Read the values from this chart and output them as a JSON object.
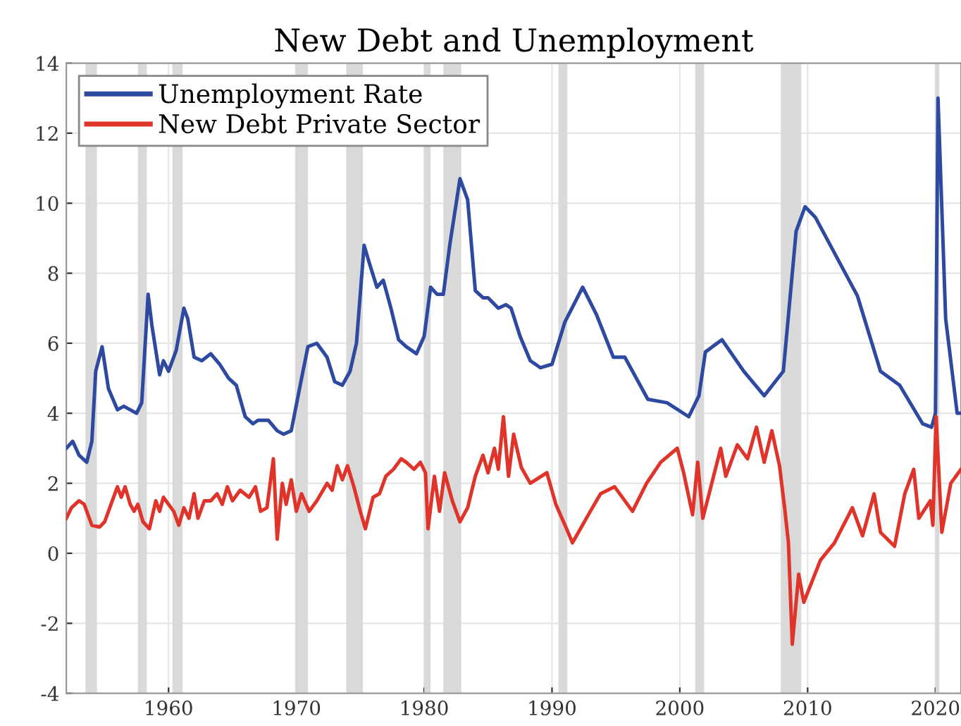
{
  "chart_data": {
    "type": "line",
    "title": "New Debt and Unemployment",
    "xlim": [
      1952,
      2022
    ],
    "xticks": [
      1960,
      1970,
      1980,
      1990,
      2000,
      2010,
      2020
    ],
    "ylim": [
      -4,
      14
    ],
    "yticks": [
      -4,
      -2,
      0,
      2,
      4,
      6,
      8,
      10,
      12,
      14
    ],
    "grid": true,
    "legend": "top left",
    "line_style": "solid",
    "bands": [
      {
        "axis": "x",
        "from": 1953.5,
        "to": 1954.4,
        "label": null,
        "color": "#d9d9d9"
      },
      {
        "axis": "x",
        "from": 1957.6,
        "to": 1958.3,
        "label": null,
        "color": "#d9d9d9"
      },
      {
        "axis": "x",
        "from": 1960.3,
        "to": 1961.1,
        "label": null,
        "color": "#d9d9d9"
      },
      {
        "axis": "x",
        "from": 1969.9,
        "to": 1970.9,
        "label": null,
        "color": "#d9d9d9"
      },
      {
        "axis": "x",
        "from": 1973.9,
        "to": 1975.2,
        "label": null,
        "color": "#d9d9d9"
      },
      {
        "axis": "x",
        "from": 1980.0,
        "to": 1980.5,
        "label": null,
        "color": "#d9d9d9"
      },
      {
        "axis": "x",
        "from": 1981.5,
        "to": 1982.9,
        "label": null,
        "color": "#d9d9d9"
      },
      {
        "axis": "x",
        "from": 1990.5,
        "to": 1991.2,
        "label": null,
        "color": "#d9d9d9"
      },
      {
        "axis": "x",
        "from": 2001.2,
        "to": 2001.9,
        "label": null,
        "color": "#d9d9d9"
      },
      {
        "axis": "x",
        "from": 2007.9,
        "to": 2009.5,
        "label": null,
        "color": "#d9d9d9"
      },
      {
        "axis": "x",
        "from": 2020.0,
        "to": 2020.3,
        "label": null,
        "color": "#d9d9d9"
      }
    ],
    "series": [
      {
        "name": "Unemployment Rate",
        "color": "#2e4aa0",
        "x": [
          1952,
          1952.5,
          1953,
          1953.6,
          1954,
          1954.3,
          1954.8,
          1955.3,
          1956,
          1956.5,
          1957,
          1957.5,
          1957.9,
          1958.4,
          1958.7,
          1959.3,
          1959.6,
          1960,
          1960.6,
          1961.2,
          1961.5,
          1962,
          1962.6,
          1963.3,
          1964,
          1964.7,
          1965.3,
          1966,
          1966.6,
          1967,
          1967.8,
          1968.5,
          1969,
          1969.6,
          1970.3,
          1970.9,
          1971.6,
          1972.4,
          1973,
          1973.6,
          1974.2,
          1974.7,
          1975.3,
          1975.7,
          1976.3,
          1976.8,
          1977.4,
          1978,
          1978.6,
          1979.4,
          1980,
          1980.5,
          1981,
          1981.5,
          1982,
          1982.8,
          1983.4,
          1984,
          1984.6,
          1985,
          1985.8,
          1986.4,
          1986.8,
          1987.5,
          1988.3,
          1989.1,
          1990,
          1991,
          1992.4,
          1993.5,
          1994.8,
          1995.7,
          1997.5,
          1999,
          2000.7,
          2001.5,
          2002,
          2003.3,
          2005,
          2006.6,
          2008.1,
          2009.1,
          2009.8,
          2010.6,
          2011.7,
          2013.9,
          2015.7,
          2017.2,
          2019,
          2019.7,
          2020.0,
          2020.2,
          2020.8,
          2021.7,
          2022
        ],
        "values": [
          3.0,
          3.2,
          2.8,
          2.6,
          3.2,
          5.2,
          5.9,
          4.7,
          4.1,
          4.2,
          4.1,
          4.0,
          4.3,
          7.4,
          6.5,
          5.1,
          5.5,
          5.2,
          5.8,
          7.0,
          6.7,
          5.6,
          5.5,
          5.7,
          5.4,
          5.0,
          4.8,
          3.9,
          3.7,
          3.8,
          3.8,
          3.5,
          3.4,
          3.5,
          4.8,
          5.9,
          6.0,
          5.6,
          4.9,
          4.8,
          5.2,
          6.0,
          8.8,
          8.3,
          7.6,
          7.8,
          7.0,
          6.1,
          5.9,
          5.7,
          6.2,
          7.6,
          7.4,
          7.4,
          8.8,
          10.7,
          10.1,
          7.5,
          7.3,
          7.3,
          7.0,
          7.1,
          7.0,
          6.2,
          5.5,
          5.3,
          5.4,
          6.6,
          7.6,
          6.8,
          5.6,
          5.6,
          4.4,
          4.3,
          3.9,
          4.5,
          5.75,
          6.1,
          5.2,
          4.5,
          5.2,
          9.2,
          9.9,
          9.6,
          8.85,
          7.35,
          5.2,
          4.8,
          3.7,
          3.6,
          4.0,
          13.0,
          6.7,
          4.0,
          4.0
        ]
      },
      {
        "name": "New Debt Private Sector",
        "color": "#e0342a",
        "x": [
          1952,
          1952.4,
          1953,
          1953.4,
          1954,
          1954.6,
          1955,
          1955.6,
          1956,
          1956.3,
          1956.6,
          1957,
          1957.3,
          1957.6,
          1958,
          1958.5,
          1959,
          1959.3,
          1959.6,
          1960,
          1960.4,
          1960.8,
          1961.2,
          1961.6,
          1962,
          1962.3,
          1962.8,
          1963.3,
          1963.8,
          1964.2,
          1964.6,
          1965,
          1965.6,
          1966.3,
          1966.8,
          1967.2,
          1967.7,
          1968.2,
          1968.5,
          1968.9,
          1969.2,
          1969.6,
          1970,
          1970.4,
          1971,
          1971.6,
          1972.4,
          1972.8,
          1973.2,
          1973.6,
          1974,
          1974.5,
          1975,
          1975.4,
          1976,
          1976.5,
          1977,
          1977.6,
          1978.2,
          1978.6,
          1979.2,
          1979.7,
          1980.1,
          1980.3,
          1980.8,
          1981.2,
          1981.6,
          1982.2,
          1982.8,
          1983.4,
          1984,
          1984.6,
          1985,
          1985.5,
          1985.8,
          1986.2,
          1986.6,
          1987,
          1987.6,
          1988.3,
          1989.6,
          1990.3,
          1991.2,
          1991.6,
          1993,
          1993.8,
          1994.9,
          1996.3,
          1997.4,
          1998.5,
          1999.8,
          2000.3,
          2001.0,
          2001.4,
          2001.8,
          2002.5,
          2003.2,
          2003.6,
          2004.5,
          2005.3,
          2006,
          2006.6,
          2007.2,
          2007.8,
          2008.2,
          2008.5,
          2008.8,
          2009.3,
          2009.7,
          2011,
          2012.1,
          2013.5,
          2014.3,
          2015.2,
          2015.7,
          2016.8,
          2017.6,
          2018.3,
          2018.7,
          2019.6,
          2019.8,
          2020.05,
          2020.5,
          2021.2,
          2022
        ],
        "values": [
          1.0,
          1.3,
          1.5,
          1.4,
          0.8,
          0.75,
          0.9,
          1.5,
          1.9,
          1.6,
          1.9,
          1.4,
          1.2,
          1.4,
          0.9,
          0.7,
          1.5,
          1.2,
          1.6,
          1.4,
          1.2,
          0.8,
          1.3,
          1.0,
          1.7,
          1.0,
          1.5,
          1.5,
          1.7,
          1.4,
          1.9,
          1.5,
          1.8,
          1.6,
          1.9,
          1.2,
          1.3,
          2.7,
          0.4,
          2.0,
          1.4,
          2.1,
          1.2,
          1.7,
          1.2,
          1.5,
          2.0,
          1.8,
          2.5,
          2.1,
          2.5,
          1.9,
          1.2,
          0.7,
          1.6,
          1.7,
          2.2,
          2.4,
          2.7,
          2.6,
          2.4,
          2.6,
          2.3,
          0.7,
          2.2,
          1.2,
          2.3,
          1.5,
          0.9,
          1.3,
          2.2,
          2.8,
          2.3,
          3.0,
          2.4,
          3.9,
          2.2,
          3.4,
          2.45,
          2.0,
          2.3,
          1.4,
          0.65,
          0.3,
          1.2,
          1.7,
          1.9,
          1.2,
          2.0,
          2.6,
          3.0,
          2.3,
          1.1,
          2.6,
          1.0,
          2.0,
          3.0,
          2.2,
          3.1,
          2.7,
          3.6,
          2.6,
          3.5,
          2.5,
          1.3,
          0.3,
          -2.6,
          -0.6,
          -1.4,
          -0.2,
          0.3,
          1.3,
          0.5,
          1.7,
          0.6,
          0.2,
          1.7,
          2.4,
          1.0,
          1.5,
          0.8,
          3.9,
          0.6,
          2.0,
          2.4
        ]
      }
    ]
  }
}
